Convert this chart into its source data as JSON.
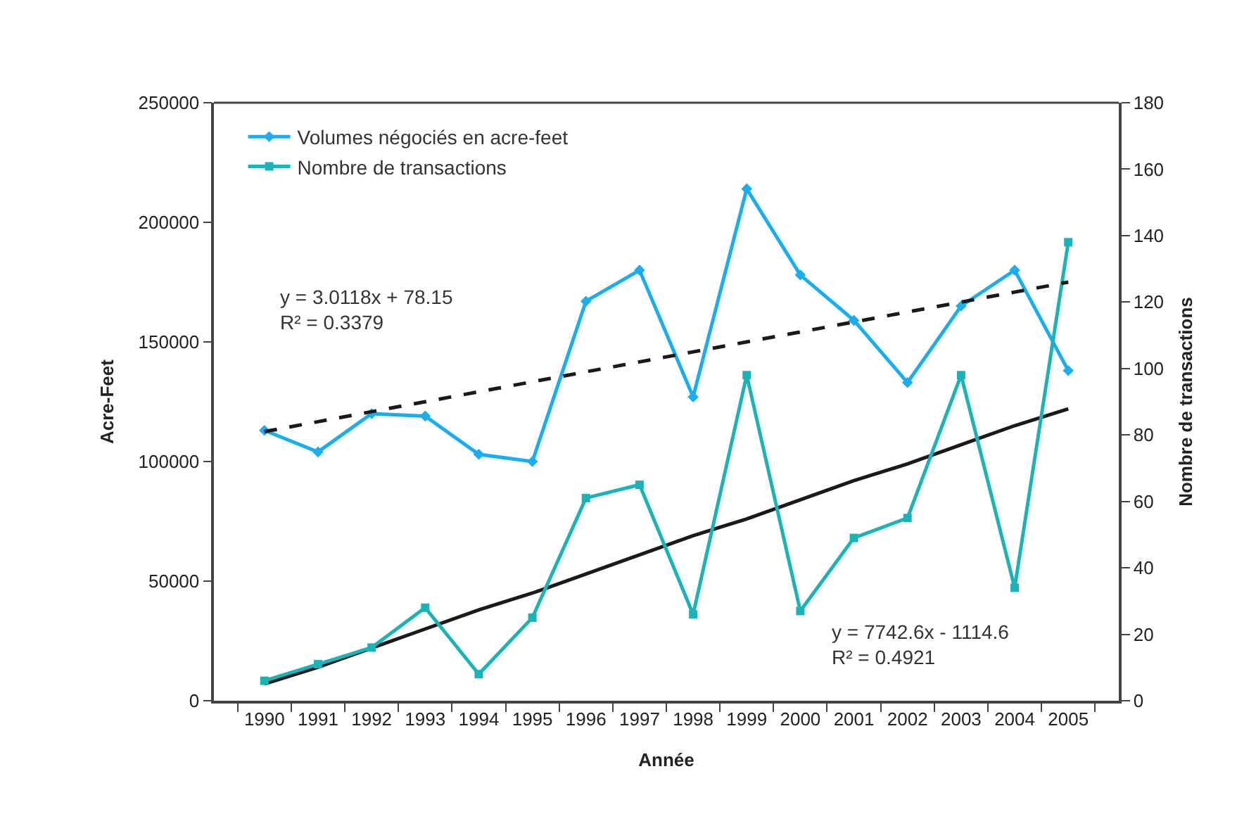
{
  "chart_data": {
    "type": "line",
    "xlabel": "Année",
    "ylabel": "Acre-Feet",
    "y2label": "Nombre de transactions",
    "categories": [
      "1990",
      "1991",
      "1992",
      "1993",
      "1994",
      "1995",
      "1996",
      "1997",
      "1998",
      "1999",
      "2000",
      "2001",
      "2002",
      "2003",
      "2004",
      "2005"
    ],
    "series": [
      {
        "name": "Volumes négociés en acre-feet",
        "color": "#1aaef0",
        "marker": "diamond",
        "values": [
          113000,
          104000,
          120000,
          119000,
          103000,
          100000,
          167000,
          180000,
          127000,
          214000,
          178000,
          159000,
          133000,
          165000,
          180000,
          138000
        ]
      },
      {
        "name": "Nombre de transactions",
        "color": "#1ab3b8",
        "marker": "square",
        "axis": "y2",
        "values": [
          6,
          11,
          16,
          28,
          8,
          25,
          61,
          65,
          26,
          98,
          27,
          49,
          55,
          98,
          34,
          138
        ]
      },
      {
        "type": "line",
        "color": "#1a1a1a",
        "line_style": "dashed",
        "marker": "none",
        "axis": "y2",
        "values": [
          81,
          84,
          87,
          90,
          93,
          96,
          99,
          102,
          105,
          108,
          111,
          114,
          117,
          120,
          123,
          126
        ]
      },
      {
        "type": "line",
        "color": "#1a1a1a",
        "line_style": "solid",
        "marker": "none",
        "values": [
          7000,
          14000,
          22000,
          30000,
          38000,
          45000,
          53000,
          61000,
          69000,
          76000,
          84000,
          92000,
          99000,
          107000,
          115000,
          122000
        ]
      }
    ],
    "ylim": [
      0,
      250000
    ],
    "yticks": [
      0,
      50000,
      100000,
      150000,
      200000,
      250000
    ],
    "y2lim": [
      0,
      180
    ],
    "y2ticks": [
      0,
      20,
      40,
      60,
      80,
      100,
      120,
      140,
      160,
      180
    ],
    "annotations": [
      "y = 3.0118x + 78.15\nR² = 0.3379",
      "y = 7742.6x - 1114.6\nR² = 0.4921"
    ],
    "grid": false,
    "legend": "top left"
  }
}
